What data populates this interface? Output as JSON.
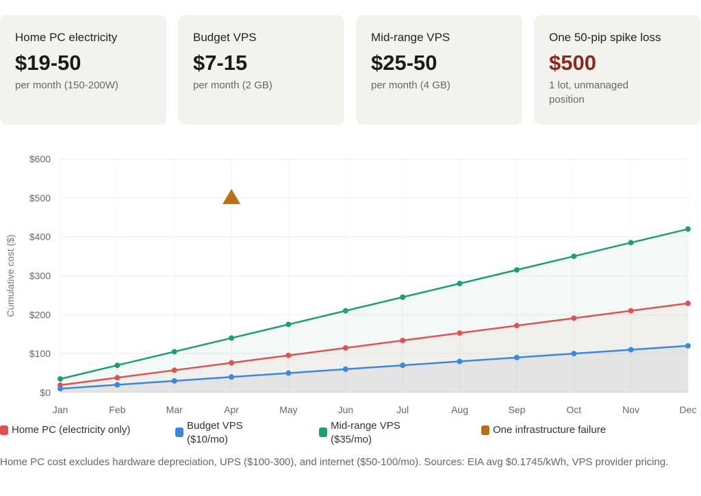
{
  "cards": [
    {
      "title": "Home PC electricity",
      "value": "$19-50",
      "sub": "per month (150-200W)"
    },
    {
      "title": "Budget VPS",
      "value": "$7-15",
      "sub": "per month (2 GB)"
    },
    {
      "title": "Mid-range VPS",
      "value": "$25-50",
      "sub": "per month (4 GB)"
    },
    {
      "title": "One 50-pip spike loss",
      "value": "$500",
      "sub": "1 lot, unmanaged position",
      "value_color": "#8b2a22"
    }
  ],
  "chart_data": {
    "type": "line",
    "categories": [
      "Jan",
      "Feb",
      "Mar",
      "Apr",
      "May",
      "Jun",
      "Jul",
      "Aug",
      "Sep",
      "Oct",
      "Nov",
      "Dec"
    ],
    "ylabel": "Cumulative cost ($)",
    "ylim": [
      0,
      600
    ],
    "yticks": [
      "$0",
      "$100",
      "$200",
      "$300",
      "$400",
      "$500",
      "$600"
    ],
    "series": [
      {
        "name": "Home PC (electricity only)",
        "color": "#e05252",
        "values": [
          19.1,
          38.2,
          57.3,
          76.4,
          95.5,
          114.6,
          133.7,
          152.8,
          171.9,
          191,
          210.1,
          229.2
        ]
      },
      {
        "name": "Budget VPS ($10/mo)",
        "color": "#3b86de",
        "values": [
          10,
          20,
          30,
          40,
          50,
          60,
          70,
          80,
          90,
          100,
          110,
          120
        ]
      },
      {
        "name": "Mid-range VPS ($35/mo)",
        "color": "#1e9e6e",
        "values": [
          35,
          70,
          105,
          140,
          175,
          210,
          245,
          280,
          315,
          350,
          385,
          420
        ]
      }
    ],
    "events": [
      {
        "name": "One infrastructure failure",
        "color": "#b86f16",
        "x": "Apr",
        "y": 500,
        "marker": "triangle"
      }
    ]
  },
  "legend": [
    "Home PC (electricity only)",
    "Budget VPS\n($10/mo)",
    "Mid-range VPS\n($35/mo)",
    "One infrastructure failure"
  ],
  "note": "Home PC cost excludes hardware depreciation, UPS ($100-300), and internet ($50-100/mo). Sources: EIA avg $0.1745/kWh, VPS provider pricing."
}
